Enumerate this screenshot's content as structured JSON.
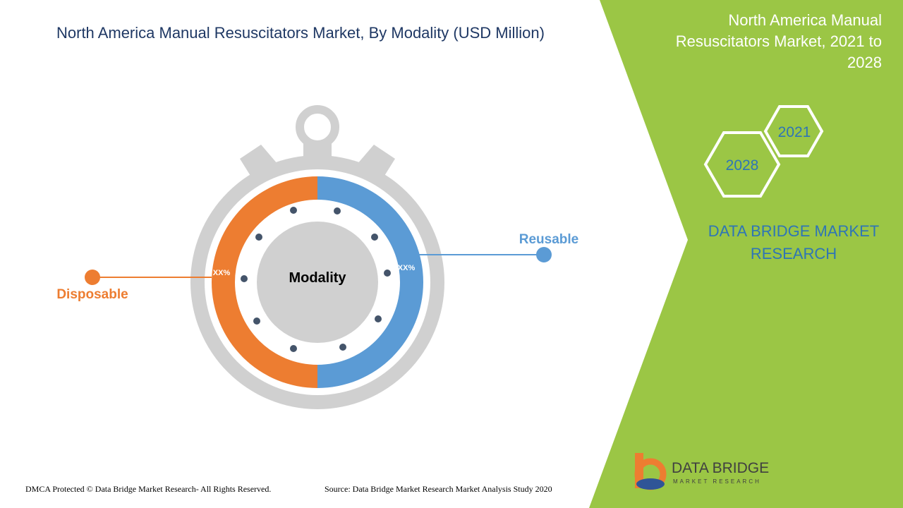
{
  "header": {
    "title": "North America Manual Resuscitators Market, By Modality (USD Million)"
  },
  "sidebar": {
    "title": "North America Manual Resuscitators Market, 2021 to 2028",
    "years": [
      "2021",
      "2028"
    ],
    "brand": "DATA BRIDGE MARKET RESEARCH"
  },
  "diagram": {
    "center_label": "Modality",
    "segments": [
      {
        "label": "Disposable",
        "value_label": "XX%"
      },
      {
        "label": "Reusable",
        "value_label": "XX%"
      }
    ]
  },
  "logo": {
    "name": "DATA BRIDGE",
    "tagline": "MARKET RESEARCH"
  },
  "footer": {
    "copyright": "DMCA Protected © Data Bridge Market Research- All Rights Reserved.",
    "source": "Source: Data Bridge Market Research Market Analysis Study 2020"
  }
}
